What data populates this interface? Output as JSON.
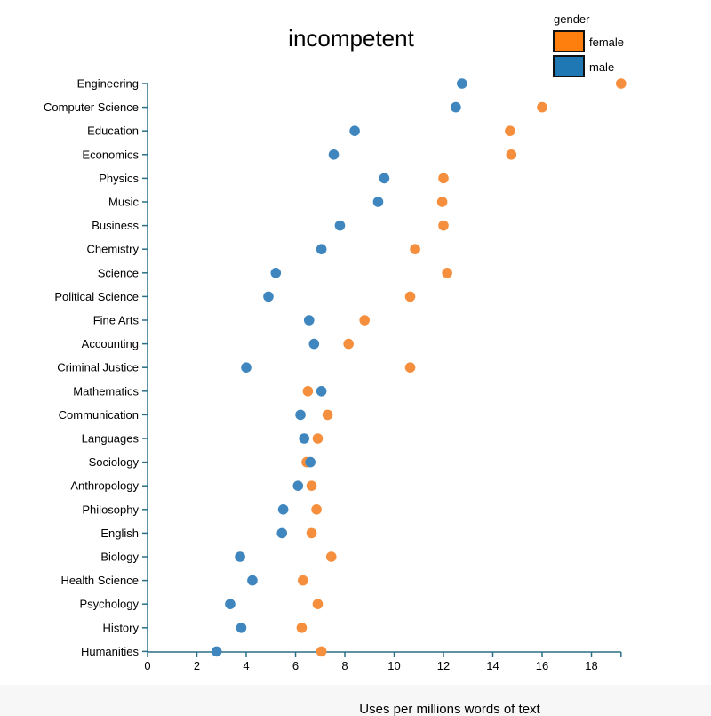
{
  "chart_data": {
    "type": "scatter",
    "title": "incompetent",
    "xlabel": "Uses per millions words of text",
    "ylabel": "",
    "xlim": [
      0,
      19.2
    ],
    "xticks": [
      "0",
      "2",
      "4",
      "6",
      "8",
      "10",
      "12",
      "14",
      "16",
      "18"
    ],
    "grid": false,
    "legend": {
      "title": "gender",
      "position": "top-right",
      "entries": [
        {
          "name": "female",
          "color": "#ff7f0e"
        },
        {
          "name": "male",
          "color": "#1f77b4"
        }
      ]
    },
    "categories": [
      "Engineering",
      "Computer Science",
      "Education",
      "Economics",
      "Physics",
      "Music",
      "Business",
      "Chemistry",
      "Science",
      "Political Science",
      "Fine Arts",
      "Accounting",
      "Criminal Justice",
      "Mathematics",
      "Communication",
      "Languages",
      "Sociology",
      "Anthropology",
      "Philosophy",
      "English",
      "Biology",
      "Health Science",
      "Psychology",
      "History",
      "Humanities"
    ],
    "series": [
      {
        "name": "female",
        "color": "#f58f3d",
        "values": [
          19.2,
          16.0,
          14.7,
          14.75,
          12.0,
          11.95,
          12.0,
          10.85,
          12.15,
          10.65,
          8.8,
          8.15,
          10.65,
          6.5,
          7.3,
          6.9,
          6.45,
          6.65,
          6.85,
          6.65,
          7.45,
          6.3,
          6.9,
          6.25,
          7.05
        ]
      },
      {
        "name": "male",
        "color": "#3f86bf",
        "values": [
          12.75,
          12.5,
          8.4,
          7.55,
          9.6,
          9.35,
          7.8,
          7.05,
          5.2,
          4.9,
          6.55,
          6.75,
          4.0,
          7.05,
          6.2,
          6.35,
          6.6,
          6.1,
          5.5,
          5.45,
          3.75,
          4.25,
          3.35,
          3.8,
          2.8
        ]
      }
    ]
  }
}
